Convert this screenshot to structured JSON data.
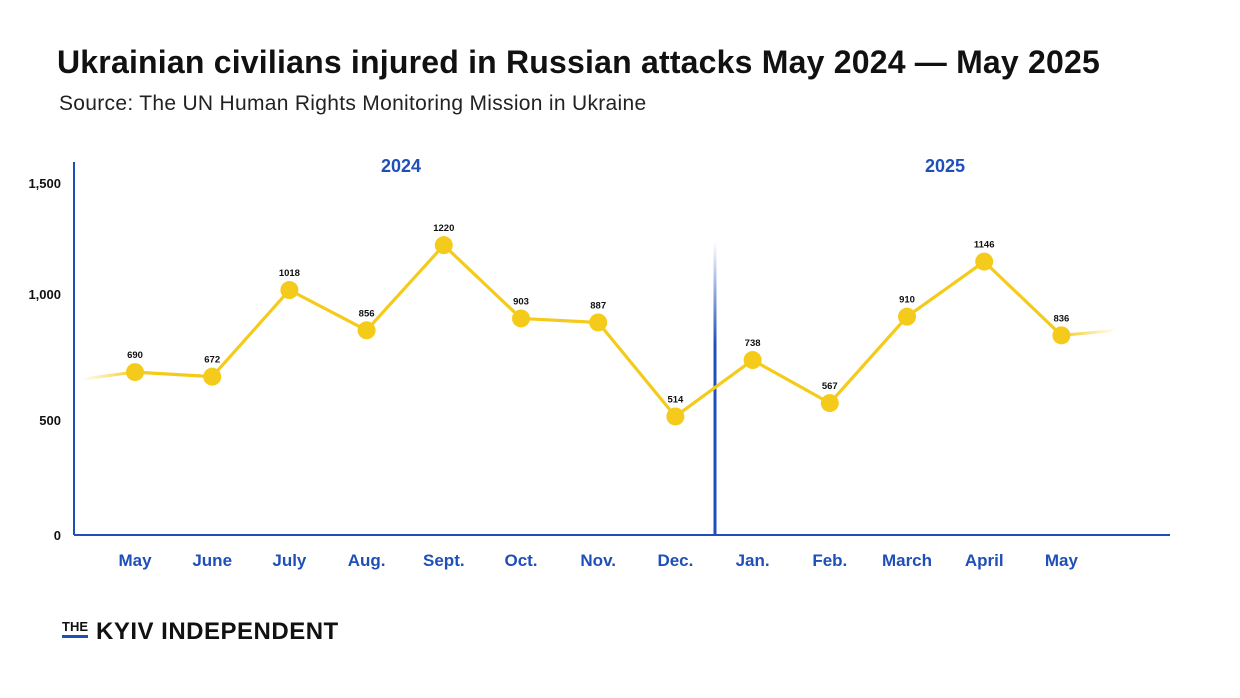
{
  "title": "Ukrainian civilians injured in Russian attacks May 2024 — May 2025",
  "subtitle": "Source: The UN Human Rights Monitoring Mission in Ukraine",
  "brand": {
    "prefix": "THE",
    "name": "KYIV INDEPENDENT"
  },
  "colors": {
    "line": "#f5cb1b",
    "axis": "#1f4fb8",
    "text_accent": "#1f4fb8"
  },
  "chart_data": {
    "type": "line",
    "title": "Ukrainian civilians injured in Russian attacks May 2024 — May 2025",
    "categories": [
      "May",
      "June",
      "July",
      "Aug.",
      "Sept.",
      "Oct.",
      "Nov.",
      "Dec.",
      "Jan.",
      "Feb.",
      "March",
      "April",
      "May"
    ],
    "series": [
      {
        "values": [
          690,
          672,
          1018,
          856,
          1220,
          903,
          887,
          514,
          738,
          567,
          910,
          1146,
          836
        ]
      }
    ],
    "y_ticks": [
      0,
      500,
      1000,
      1500
    ],
    "y_tick_labels": [
      "0",
      "500",
      "1,000",
      "1,500"
    ],
    "year_labels": [
      "2024",
      "2025"
    ],
    "ylim": [
      0,
      1600
    ],
    "xlabel": "",
    "ylabel": "",
    "grid": false,
    "legend": "none"
  }
}
